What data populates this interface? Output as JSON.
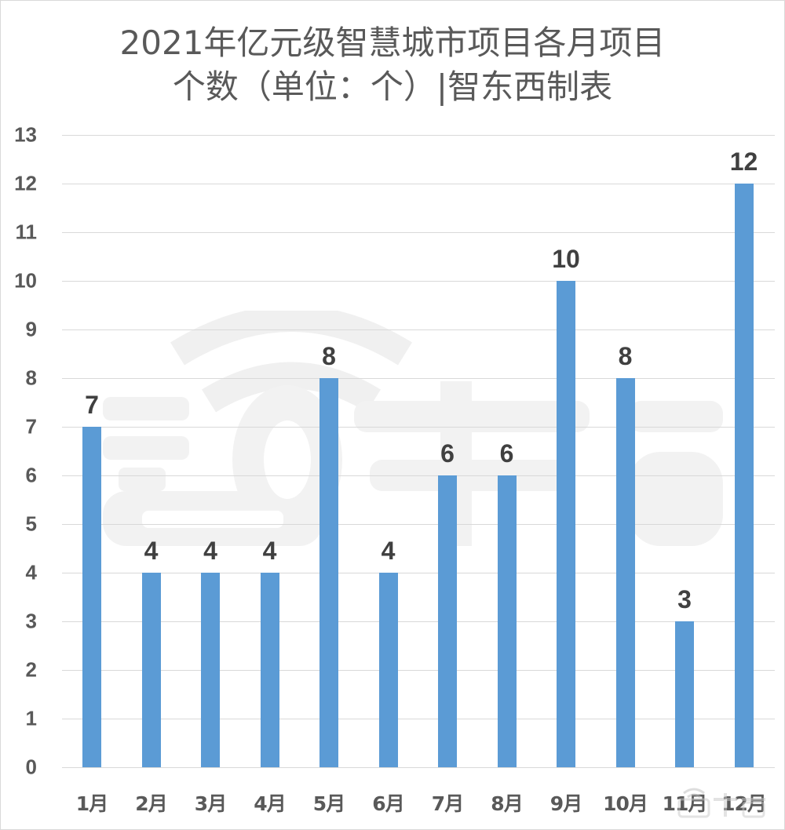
{
  "title": {
    "line1": "2021年亿元级智慧城市项目各月项目",
    "line2": "个数（单位：个）|智东西制表"
  },
  "watermark": {
    "text": "智东西",
    "icon": "wifi-signal-icon"
  },
  "colors": {
    "bar": "#5B9BD5",
    "gridline": "#D9D9D9",
    "axis_text": "#595959",
    "label_text": "#404040",
    "border": "#D9D9D9"
  },
  "chart_data": {
    "type": "bar",
    "title": "2021年亿元级智慧城市项目各月项目个数（单位：个）|智东西制表",
    "xlabel": "",
    "ylabel": "",
    "categories": [
      "1月",
      "2月",
      "3月",
      "4月",
      "5月",
      "6月",
      "7月",
      "8月",
      "9月",
      "10月",
      "11月",
      "12月"
    ],
    "values": [
      7,
      4,
      4,
      4,
      8,
      4,
      6,
      6,
      10,
      8,
      3,
      12
    ],
    "data_labels": [
      "7",
      "4",
      "4",
      "4",
      "8",
      "4",
      "6",
      "6",
      "10",
      "8",
      "3",
      "12"
    ],
    "ylim": [
      0,
      13
    ],
    "yticks": [
      "0",
      "1",
      "2",
      "3",
      "4",
      "5",
      "6",
      "7",
      "8",
      "9",
      "10",
      "11",
      "12",
      "13"
    ],
    "grid": true,
    "legend": "none",
    "bar_color": "#5B9BD5"
  }
}
